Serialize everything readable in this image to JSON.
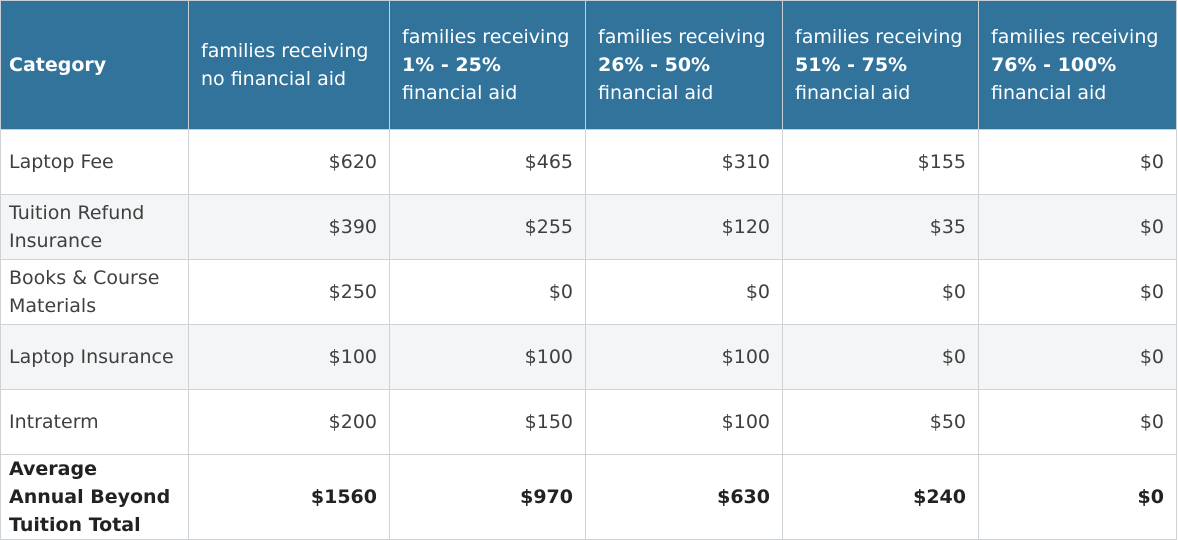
{
  "table": {
    "header": {
      "category": "Category",
      "columns": [
        {
          "prefix": "families receiving",
          "range": "",
          "suffix": "no financial aid"
        },
        {
          "prefix": "families receiving",
          "range": "1% - 25%",
          "suffix": "financial aid"
        },
        {
          "prefix": "families receiving",
          "range": "26% - 50%",
          "suffix": "financial aid"
        },
        {
          "prefix": "families receiving",
          "range": "51% - 75%",
          "suffix": "financial aid"
        },
        {
          "prefix": "families receiving",
          "range": "76% - 100%",
          "suffix": "financial aid"
        }
      ]
    },
    "rows": [
      {
        "category": "Laptop Fee",
        "values": [
          "$620",
          "$465",
          "$310",
          "$155",
          "$0"
        ]
      },
      {
        "category": "Tuition Refund Insurance",
        "values": [
          "$390",
          "$255",
          "$120",
          "$35",
          "$0"
        ]
      },
      {
        "category": "Books & Course Materials",
        "values": [
          "$250",
          "$0",
          "$0",
          "$0",
          "$0"
        ]
      },
      {
        "category": "Laptop Insurance",
        "values": [
          "$100",
          "$100",
          "$100",
          "$0",
          "$0"
        ]
      },
      {
        "category": "Intraterm",
        "values": [
          "$200",
          "$150",
          "$100",
          "$50",
          "$0"
        ]
      }
    ],
    "total": {
      "category": "Average Annual Beyond Tuition Total",
      "values": [
        "$1560",
        "$970",
        "$630",
        "$240",
        "$0"
      ]
    }
  },
  "colors": {
    "header_background": "#31739b",
    "header_text": "#ffffff",
    "row_alt_background": "#f4f5f6",
    "border": "#cfd3d6"
  }
}
